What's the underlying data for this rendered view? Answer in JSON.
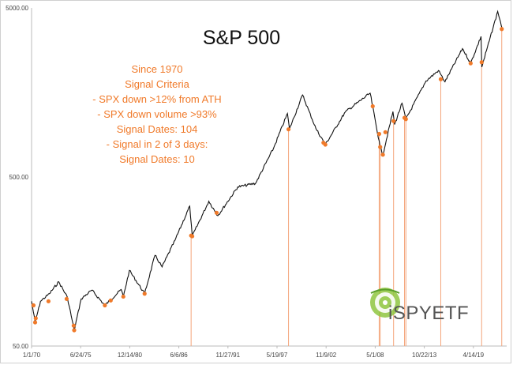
{
  "chart_data": {
    "type": "line",
    "title": "S&P 500",
    "yscale": "log",
    "ylim": [
      50,
      5000
    ],
    "xlim": [
      "1970-01-01",
      "2022-12-31"
    ],
    "yticks": [
      {
        "value": 5000,
        "label": "5000.00"
      },
      {
        "value": 500,
        "label": "500.00"
      },
      {
        "value": 50,
        "label": "50.00"
      }
    ],
    "xticks": [
      {
        "date": "1970-01-01",
        "label": "1/1/70"
      },
      {
        "date": "1975-06-24",
        "label": "6/24/75"
      },
      {
        "date": "1980-12-14",
        "label": "12/14/80"
      },
      {
        "date": "1986-06-06",
        "label": "6/6/86"
      },
      {
        "date": "1991-11-27",
        "label": "11/27/91"
      },
      {
        "date": "1997-05-19",
        "label": "5/19/97"
      },
      {
        "date": "2002-11-09",
        "label": "11/9/02"
      },
      {
        "date": "2008-05-01",
        "label": "5/1/08"
      },
      {
        "date": "2013-10-22",
        "label": "10/22/13"
      },
      {
        "date": "2019-04-14",
        "label": "4/14/19"
      }
    ],
    "series": [
      {
        "color": "#111111",
        "points": [
          [
            "1970-01-01",
            92
          ],
          [
            "1970-05-26",
            69
          ],
          [
            "1970-12-31",
            92
          ],
          [
            "1971-12-31",
            102
          ],
          [
            "1973-01-11",
            120
          ],
          [
            "1973-12-31",
            97
          ],
          [
            "1974-10-03",
            62
          ],
          [
            "1975-07-15",
            95
          ],
          [
            "1976-09-21",
            107
          ],
          [
            "1978-03-06",
            87
          ],
          [
            "1979-12-31",
            108
          ],
          [
            "1980-03-27",
            98
          ],
          [
            "1980-11-28",
            140
          ],
          [
            "1982-08-12",
            102
          ],
          [
            "1983-10-10",
            172
          ],
          [
            "1984-07-24",
            147
          ],
          [
            "1985-12-31",
            211
          ],
          [
            "1987-08-25",
            336
          ],
          [
            "1987-12-04",
            223
          ],
          [
            "1989-10-09",
            359
          ],
          [
            "1990-10-11",
            295
          ],
          [
            "1992-12-31",
            436
          ],
          [
            "1994-12-31",
            459
          ],
          [
            "1996-12-31",
            741
          ],
          [
            "1998-07-17",
            1187
          ],
          [
            "1998-10-08",
            960
          ],
          [
            "2000-03-24",
            1527
          ],
          [
            "2001-09-21",
            966
          ],
          [
            "2002-10-09",
            777
          ],
          [
            "2004-12-31",
            1212
          ],
          [
            "2007-10-09",
            1565
          ],
          [
            "2008-11-20",
            752
          ],
          [
            "2009-03-09",
            677
          ],
          [
            "2010-04-23",
            1217
          ],
          [
            "2010-07-02",
            1022
          ],
          [
            "2011-04-29",
            1364
          ],
          [
            "2011-10-03",
            1099
          ],
          [
            "2013-12-31",
            1848
          ],
          [
            "2015-05-21",
            2131
          ],
          [
            "2016-02-11",
            1829
          ],
          [
            "2018-01-26",
            2873
          ],
          [
            "2018-12-24",
            2351
          ],
          [
            "2020-02-19",
            3386
          ],
          [
            "2020-03-23",
            2237
          ],
          [
            "2021-12-31",
            4766
          ],
          [
            "2022-06-30",
            3785
          ]
        ]
      }
    ],
    "signal_points": [
      [
        "1970-03-20",
        87
      ],
      [
        "1970-05-26",
        69
      ],
      [
        "1970-06-20",
        73
      ],
      [
        "1971-11-20",
        92
      ],
      [
        "1973-11-30",
        95
      ],
      [
        "1974-09-13",
        66
      ],
      [
        "1974-10-03",
        62
      ],
      [
        "1978-03-06",
        87
      ],
      [
        "1978-10-30",
        93
      ],
      [
        "1980-03-27",
        98
      ],
      [
        "1982-08-12",
        102
      ],
      [
        "1987-10-19",
        225
      ],
      [
        "1987-12-04",
        223
      ],
      [
        "1990-08-23",
        307
      ],
      [
        "1998-08-31",
        957
      ],
      [
        "2002-07-23",
        797
      ],
      [
        "2002-10-09",
        777
      ],
      [
        "2008-01-21",
        1310
      ],
      [
        "2008-10-10",
        899
      ],
      [
        "2008-11-20",
        752
      ],
      [
        "2009-03-09",
        677
      ],
      [
        "2009-06-20",
        920
      ],
      [
        "2010-05-20",
        1071
      ],
      [
        "2011-08-08",
        1119
      ],
      [
        "2011-10-03",
        1099
      ],
      [
        "2015-08-24",
        1893
      ],
      [
        "2018-12-24",
        2351
      ],
      [
        "2020-03-16",
        2386
      ],
      [
        "2022-06-13",
        3750
      ]
    ],
    "signal_dates": [
      "1987-10-19",
      "1998-08-31",
      "2008-10-10",
      "2008-11-20",
      "2010-05-20",
      "2011-08-08",
      "2011-10-03",
      "2015-08-24",
      "2020-03-16",
      "2022-06-13"
    ],
    "colors": {
      "line": "#111111",
      "signal": "#f07a2a",
      "signal_line": "#f4a47a"
    },
    "annotations": [
      "Since 1970",
      "Signal Criteria",
      "- SPX down >12% from ATH",
      "- SPX down volume >93%",
      "Signal Dates: 104",
      "- Signal in 2 of 3 days:",
      "Signal Dates: 10"
    ]
  },
  "logo": {
    "text": "iSPYETF",
    "icon": "target-globe-icon"
  }
}
